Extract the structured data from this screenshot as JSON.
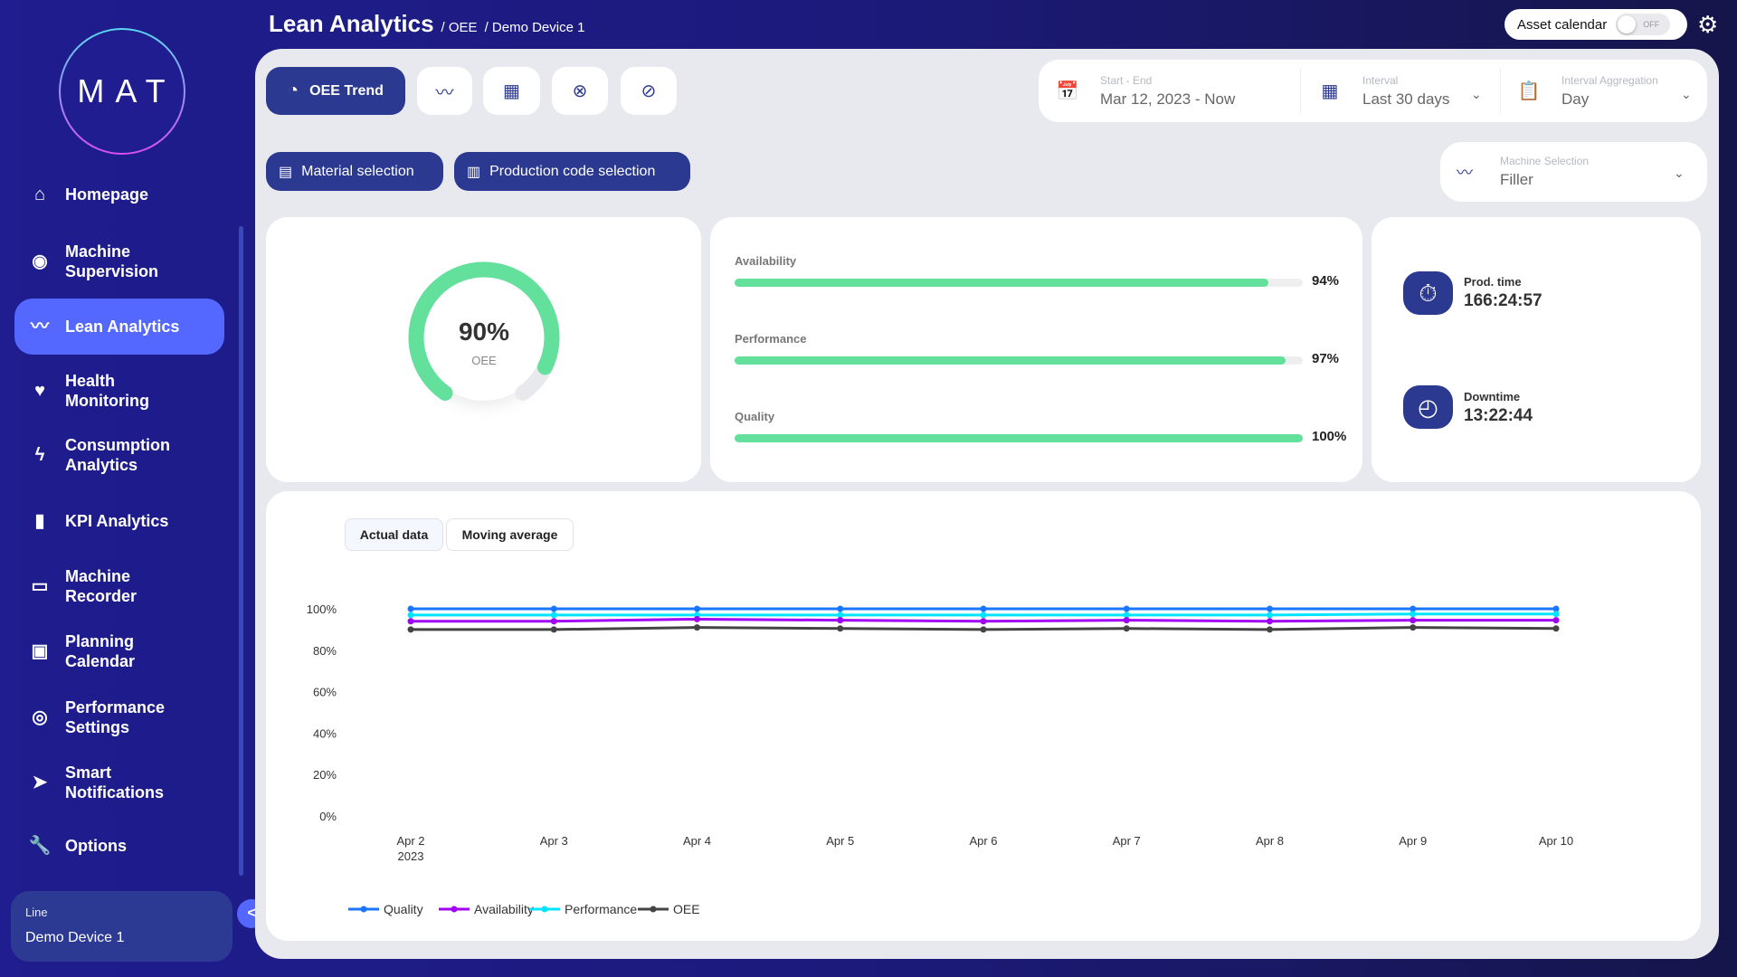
{
  "app": {
    "logo": "MAT",
    "title": "Lean Analytics",
    "breadcrumb": [
      "/ OEE",
      "/ Demo Device 1"
    ]
  },
  "header": {
    "asset_calendar_label": "Asset calendar",
    "asset_calendar_toggle": "OFF"
  },
  "sidebar": {
    "items": [
      {
        "label": "Homepage",
        "icon": "home-icon"
      },
      {
        "label": "Machine Supervision",
        "icon": "eye-icon"
      },
      {
        "label": "Lean Analytics",
        "icon": "trend-icon",
        "active": true
      },
      {
        "label": "Health Monitoring",
        "icon": "heart-pulse-icon"
      },
      {
        "label": "Consumption Analytics",
        "icon": "bolt-icon"
      },
      {
        "label": "KPI Analytics",
        "icon": "bar-chart-icon"
      },
      {
        "label": "Machine Recorder",
        "icon": "recorder-icon"
      },
      {
        "label": "Planning Calendar",
        "icon": "calendar-icon"
      },
      {
        "label": "Performance Settings",
        "icon": "stopwatch-icon"
      },
      {
        "label": "Smart Notifications",
        "icon": "send-icon"
      },
      {
        "label": "Options",
        "icon": "wrench-icon"
      }
    ],
    "line_label": "Line",
    "line_value": "Demo Device 1"
  },
  "toolbar": {
    "oee_trend": "OEE Trend",
    "material_selection": "Material selection",
    "production_code_selection": "Production code selection"
  },
  "filters": {
    "start_end_label": "Start - End",
    "start_end_value": "Mar 12, 2023 - Now",
    "interval_label": "Interval",
    "interval_value": "Last 30 days",
    "aggregation_label": "Interval Aggregation",
    "aggregation_value": "Day",
    "machine_label": "Machine Selection",
    "machine_value": "Filler"
  },
  "oee": {
    "value": "90%",
    "label": "OEE",
    "percent": 90
  },
  "metrics": [
    {
      "label": "Availability",
      "value": "94%",
      "percent": 94
    },
    {
      "label": "Performance",
      "value": "97%",
      "percent": 97
    },
    {
      "label": "Quality",
      "value": "100%",
      "percent": 100
    }
  ],
  "times": {
    "prod_label": "Prod. time",
    "prod_value": "166:24:57",
    "down_label": "Downtime",
    "down_value": "13:22:44"
  },
  "chart_tabs": [
    "Actual data",
    "Moving average"
  ],
  "colors": {
    "accent": "#2b3990",
    "active_nav": "#5468ff",
    "bar": "#62e09c"
  },
  "chart_data": {
    "type": "line",
    "categories": [
      "Apr 2",
      "Apr 3",
      "Apr 4",
      "Apr 5",
      "Apr 6",
      "Apr 7",
      "Apr 8",
      "Apr 9",
      "Apr 10"
    ],
    "year_label": "2023",
    "yticks": [
      "0%",
      "20%",
      "40%",
      "60%",
      "80%",
      "100%"
    ],
    "ylim": [
      0,
      100
    ],
    "grid": false,
    "legend": "bottom-left",
    "series": [
      {
        "name": "Quality",
        "color": "#1a75ff",
        "values": [
          100,
          100,
          100,
          100,
          100,
          100,
          100,
          100,
          100
        ]
      },
      {
        "name": "Availability",
        "color": "#a100f2",
        "values": [
          94,
          94,
          95,
          94.5,
          94,
          94.5,
          94,
          94.5,
          94.5
        ]
      },
      {
        "name": "Performance",
        "color": "#00e5ff",
        "values": [
          97,
          97,
          97,
          97,
          97,
          97,
          97,
          97.5,
          97.5
        ]
      },
      {
        "name": "OEE",
        "color": "#444444",
        "values": [
          90,
          90,
          91,
          90.5,
          90,
          90.5,
          90,
          91,
          90.5
        ]
      }
    ]
  }
}
